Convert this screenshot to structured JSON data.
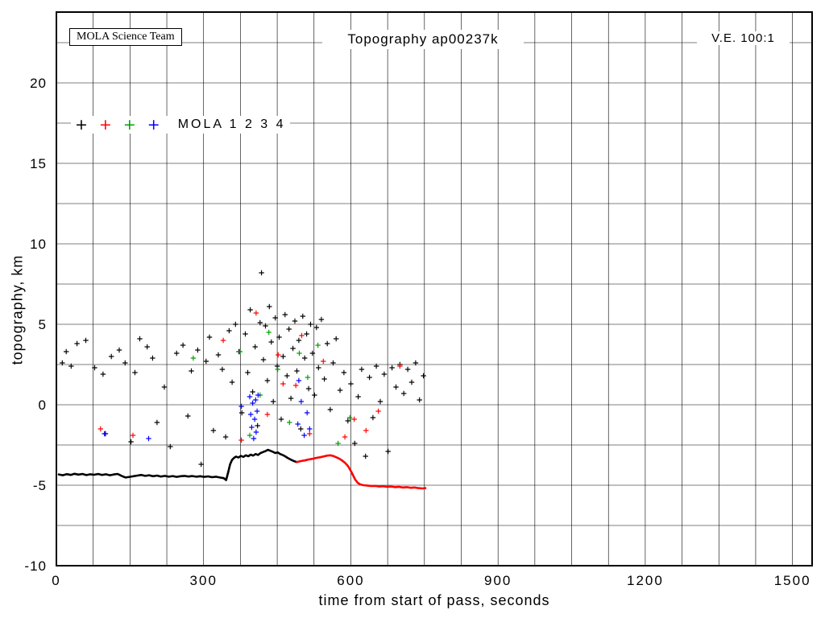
{
  "header": {
    "team_box": "MOLA Science Team",
    "title": "Topography ap00237k",
    "ve_label": "V.E. 100:1"
  },
  "legend": {
    "label": "MOLA 1 2 3 4",
    "marker_glyph": "+",
    "entries": [
      {
        "name": "MOLA 1",
        "color": "#000000"
      },
      {
        "name": "MOLA 2",
        "color": "#ff0000"
      },
      {
        "name": "MOLA 3",
        "color": "#00a000"
      },
      {
        "name": "MOLA 4",
        "color": "#0000ff"
      }
    ]
  },
  "chart_data": {
    "type": "scatter",
    "title": "Topography ap00237k",
    "xlabel": "time from start of pass, seconds",
    "ylabel": "topography, km",
    "xlim": [
      0,
      1540
    ],
    "ylim": [
      -10,
      24.4
    ],
    "xticks": [
      0,
      300,
      600,
      900,
      1200,
      1500
    ],
    "yticks": [
      -10,
      -5,
      0,
      5,
      10,
      15,
      20
    ],
    "x_grid_step": 75,
    "y_grid_step": 2.5,
    "grid": true,
    "marker": "plus",
    "legend_position": "upper-left-inside",
    "profiles": [
      {
        "name": "ground-track-segment-1",
        "color": "#000000",
        "points": [
          [
            5,
            -4.33
          ],
          [
            13,
            -4.38
          ],
          [
            21,
            -4.31
          ],
          [
            29,
            -4.36
          ],
          [
            37,
            -4.29
          ],
          [
            45,
            -4.34
          ],
          [
            53,
            -4.3
          ],
          [
            61,
            -4.37
          ],
          [
            69,
            -4.32
          ],
          [
            77,
            -4.35
          ],
          [
            85,
            -4.3
          ],
          [
            93,
            -4.36
          ],
          [
            101,
            -4.32
          ],
          [
            109,
            -4.38
          ],
          [
            117,
            -4.33
          ],
          [
            125,
            -4.3
          ],
          [
            133,
            -4.42
          ],
          [
            141,
            -4.52
          ],
          [
            149,
            -4.48
          ],
          [
            157,
            -4.44
          ],
          [
            165,
            -4.4
          ],
          [
            173,
            -4.36
          ],
          [
            181,
            -4.42
          ],
          [
            189,
            -4.38
          ],
          [
            197,
            -4.44
          ],
          [
            205,
            -4.4
          ],
          [
            213,
            -4.46
          ],
          [
            221,
            -4.42
          ],
          [
            229,
            -4.47
          ],
          [
            237,
            -4.43
          ],
          [
            245,
            -4.48
          ],
          [
            253,
            -4.44
          ],
          [
            261,
            -4.42
          ],
          [
            269,
            -4.46
          ],
          [
            277,
            -4.43
          ],
          [
            285,
            -4.47
          ],
          [
            293,
            -4.44
          ],
          [
            301,
            -4.48
          ],
          [
            309,
            -4.45
          ],
          [
            317,
            -4.5
          ],
          [
            325,
            -4.47
          ],
          [
            333,
            -4.52
          ],
          [
            341,
            -4.56
          ],
          [
            346,
            -4.68
          ],
          [
            350,
            -4.2
          ],
          [
            354,
            -3.7
          ],
          [
            358,
            -3.42
          ],
          [
            362,
            -3.3
          ],
          [
            366,
            -3.22
          ],
          [
            371,
            -3.28
          ],
          [
            376,
            -3.18
          ],
          [
            381,
            -3.24
          ],
          [
            386,
            -3.14
          ],
          [
            391,
            -3.2
          ],
          [
            396,
            -3.1
          ],
          [
            401,
            -3.16
          ],
          [
            406,
            -3.06
          ],
          [
            411,
            -3.12
          ],
          [
            416,
            -3
          ],
          [
            421,
            -2.94
          ],
          [
            426,
            -2.88
          ],
          [
            431,
            -2.8
          ],
          [
            436,
            -2.86
          ],
          [
            441,
            -2.92
          ],
          [
            446,
            -3
          ],
          [
            451,
            -2.96
          ],
          [
            456,
            -3.06
          ],
          [
            461,
            -3.12
          ],
          [
            466,
            -3.2
          ],
          [
            471,
            -3.3
          ],
          [
            476,
            -3.38
          ],
          [
            481,
            -3.46
          ],
          [
            486,
            -3.52
          ],
          [
            490,
            -3.56
          ]
        ]
      },
      {
        "name": "ground-track-segment-2",
        "color": "#ff0000",
        "points": [
          [
            490,
            -3.56
          ],
          [
            498,
            -3.5
          ],
          [
            506,
            -3.46
          ],
          [
            514,
            -3.4
          ],
          [
            522,
            -3.36
          ],
          [
            530,
            -3.3
          ],
          [
            538,
            -3.26
          ],
          [
            546,
            -3.2
          ],
          [
            552,
            -3.16
          ],
          [
            558,
            -3.14
          ],
          [
            564,
            -3.18
          ],
          [
            570,
            -3.26
          ],
          [
            576,
            -3.34
          ],
          [
            582,
            -3.46
          ],
          [
            588,
            -3.6
          ],
          [
            594,
            -3.8
          ],
          [
            599,
            -4.05
          ],
          [
            604,
            -4.35
          ],
          [
            609,
            -4.65
          ],
          [
            614,
            -4.85
          ],
          [
            619,
            -4.95
          ],
          [
            626,
            -5
          ],
          [
            634,
            -5.02
          ],
          [
            642,
            -5.05
          ],
          [
            650,
            -5.04
          ],
          [
            658,
            -5.08
          ],
          [
            666,
            -5.06
          ],
          [
            674,
            -5.1
          ],
          [
            682,
            -5.08
          ],
          [
            690,
            -5.12
          ],
          [
            698,
            -5.1
          ],
          [
            706,
            -5.14
          ],
          [
            714,
            -5.12
          ],
          [
            722,
            -5.16
          ],
          [
            730,
            -5.14
          ],
          [
            738,
            -5.18
          ],
          [
            746,
            -5.2
          ],
          [
            752,
            -5.18
          ]
        ]
      }
    ],
    "scatter": [
      {
        "name": "MOLA 1",
        "color": "#000000",
        "points": [
          [
            12,
            2.6
          ],
          [
            20,
            3.3
          ],
          [
            30,
            2.4
          ],
          [
            42,
            3.8
          ],
          [
            60,
            4
          ],
          [
            78,
            2.3
          ],
          [
            95,
            1.9
          ],
          [
            100,
            -1.8
          ],
          [
            112,
            3
          ],
          [
            128,
            3.4
          ],
          [
            140,
            2.6
          ],
          [
            152,
            -2.3
          ],
          [
            160,
            2
          ],
          [
            170,
            4.1
          ],
          [
            185,
            3.6
          ],
          [
            196,
            2.9
          ],
          [
            205,
            -1.1
          ],
          [
            220,
            1.1
          ],
          [
            232,
            -2.6
          ],
          [
            245,
            3.2
          ],
          [
            258,
            3.7
          ],
          [
            268,
            -0.7
          ],
          [
            275,
            2.1
          ],
          [
            288,
            3.4
          ],
          [
            295,
            -3.7
          ],
          [
            305,
            2.7
          ],
          [
            312,
            4.2
          ],
          [
            320,
            -1.6
          ],
          [
            330,
            3.1
          ],
          [
            338,
            2.2
          ],
          [
            345,
            -2
          ],
          [
            352,
            4.6
          ],
          [
            358,
            1.4
          ],
          [
            365,
            5
          ],
          [
            372,
            3.3
          ],
          [
            378,
            -0.5
          ],
          [
            385,
            4.4
          ],
          [
            390,
            2
          ],
          [
            395,
            5.9
          ],
          [
            400,
            0.8
          ],
          [
            405,
            3.6
          ],
          [
            410,
            -1.3
          ],
          [
            415,
            5.1
          ],
          [
            418,
            8.2
          ],
          [
            422,
            2.8
          ],
          [
            426,
            4.9
          ],
          [
            430,
            1.5
          ],
          [
            434,
            6.1
          ],
          [
            438,
            3.9
          ],
          [
            442,
            0.2
          ],
          [
            446,
            5.4
          ],
          [
            450,
            2.4
          ],
          [
            454,
            4.2
          ],
          [
            458,
            -0.9
          ],
          [
            462,
            3
          ],
          [
            466,
            5.6
          ],
          [
            470,
            1.8
          ],
          [
            474,
            4.7
          ],
          [
            478,
            0.4
          ],
          [
            482,
            3.5
          ],
          [
            486,
            5.2
          ],
          [
            490,
            2.1
          ],
          [
            494,
            4
          ],
          [
            498,
            -1.5
          ],
          [
            502,
            5.5
          ],
          [
            506,
            2.9
          ],
          [
            510,
            4.4
          ],
          [
            514,
            1
          ],
          [
            518,
            5
          ],
          [
            522,
            3.2
          ],
          [
            526,
            0.6
          ],
          [
            530,
            4.8
          ],
          [
            534,
            2.3
          ],
          [
            540,
            5.3
          ],
          [
            546,
            1.6
          ],
          [
            552,
            3.8
          ],
          [
            558,
            -0.3
          ],
          [
            564,
            2.6
          ],
          [
            570,
            4.1
          ],
          [
            578,
            0.9
          ],
          [
            586,
            2
          ],
          [
            594,
            -1
          ],
          [
            600,
            1.3
          ],
          [
            608,
            -2.4
          ],
          [
            615,
            0.5
          ],
          [
            622,
            2.2
          ],
          [
            630,
            -3.2
          ],
          [
            638,
            1.7
          ],
          [
            645,
            -0.8
          ],
          [
            652,
            2.4
          ],
          [
            660,
            0.2
          ],
          [
            668,
            1.9
          ],
          [
            676,
            -2.9
          ],
          [
            684,
            2.3
          ],
          [
            692,
            1.1
          ],
          [
            700,
            2.5
          ],
          [
            708,
            0.7
          ],
          [
            716,
            2.2
          ],
          [
            724,
            1.4
          ],
          [
            732,
            2.6
          ],
          [
            740,
            0.3
          ],
          [
            748,
            1.8
          ]
        ]
      },
      {
        "name": "MOLA 2",
        "color": "#ff0000",
        "points": [
          [
            90,
            -1.5
          ],
          [
            156,
            -1.9
          ],
          [
            340,
            4
          ],
          [
            377,
            -2.2
          ],
          [
            407,
            5.7
          ],
          [
            430,
            -0.6
          ],
          [
            452,
            3.1
          ],
          [
            462,
            1.3
          ],
          [
            488,
            1.2
          ],
          [
            500,
            4.3
          ],
          [
            516,
            -1.8
          ],
          [
            544,
            2.7
          ],
          [
            588,
            -2
          ],
          [
            607,
            -0.9
          ],
          [
            631,
            -1.6
          ],
          [
            656,
            -0.4
          ],
          [
            700,
            2.4
          ]
        ]
      },
      {
        "name": "MOLA 3",
        "color": "#00a000",
        "points": [
          [
            279,
            2.9
          ],
          [
            374,
            3.3
          ],
          [
            394,
            -1.9
          ],
          [
            415,
            0.6
          ],
          [
            433,
            4.5
          ],
          [
            451,
            2.2
          ],
          [
            475,
            -1.1
          ],
          [
            495,
            3.2
          ],
          [
            512,
            1.7
          ],
          [
            533,
            3.7
          ],
          [
            574,
            -2.4
          ],
          [
            598,
            -0.8
          ]
        ]
      },
      {
        "name": "MOLA 4",
        "color": "#0000ff",
        "points": [
          [
            98,
            -1.8
          ],
          [
            188,
            -2.1
          ],
          [
            377,
            -0.1
          ],
          [
            394,
            0.5
          ],
          [
            396,
            -0.6
          ],
          [
            398,
            -1.4
          ],
          [
            400,
            0.1
          ],
          [
            402,
            -2.1
          ],
          [
            404,
            -0.9
          ],
          [
            406,
            0.3
          ],
          [
            407,
            -1.7
          ],
          [
            409,
            -0.4
          ],
          [
            411,
            0.6
          ],
          [
            492,
            -1.2
          ],
          [
            494,
            1.5
          ],
          [
            499,
            0.2
          ],
          [
            505,
            -1.9
          ],
          [
            511,
            -0.5
          ],
          [
            516,
            -1.5
          ]
        ]
      }
    ]
  }
}
